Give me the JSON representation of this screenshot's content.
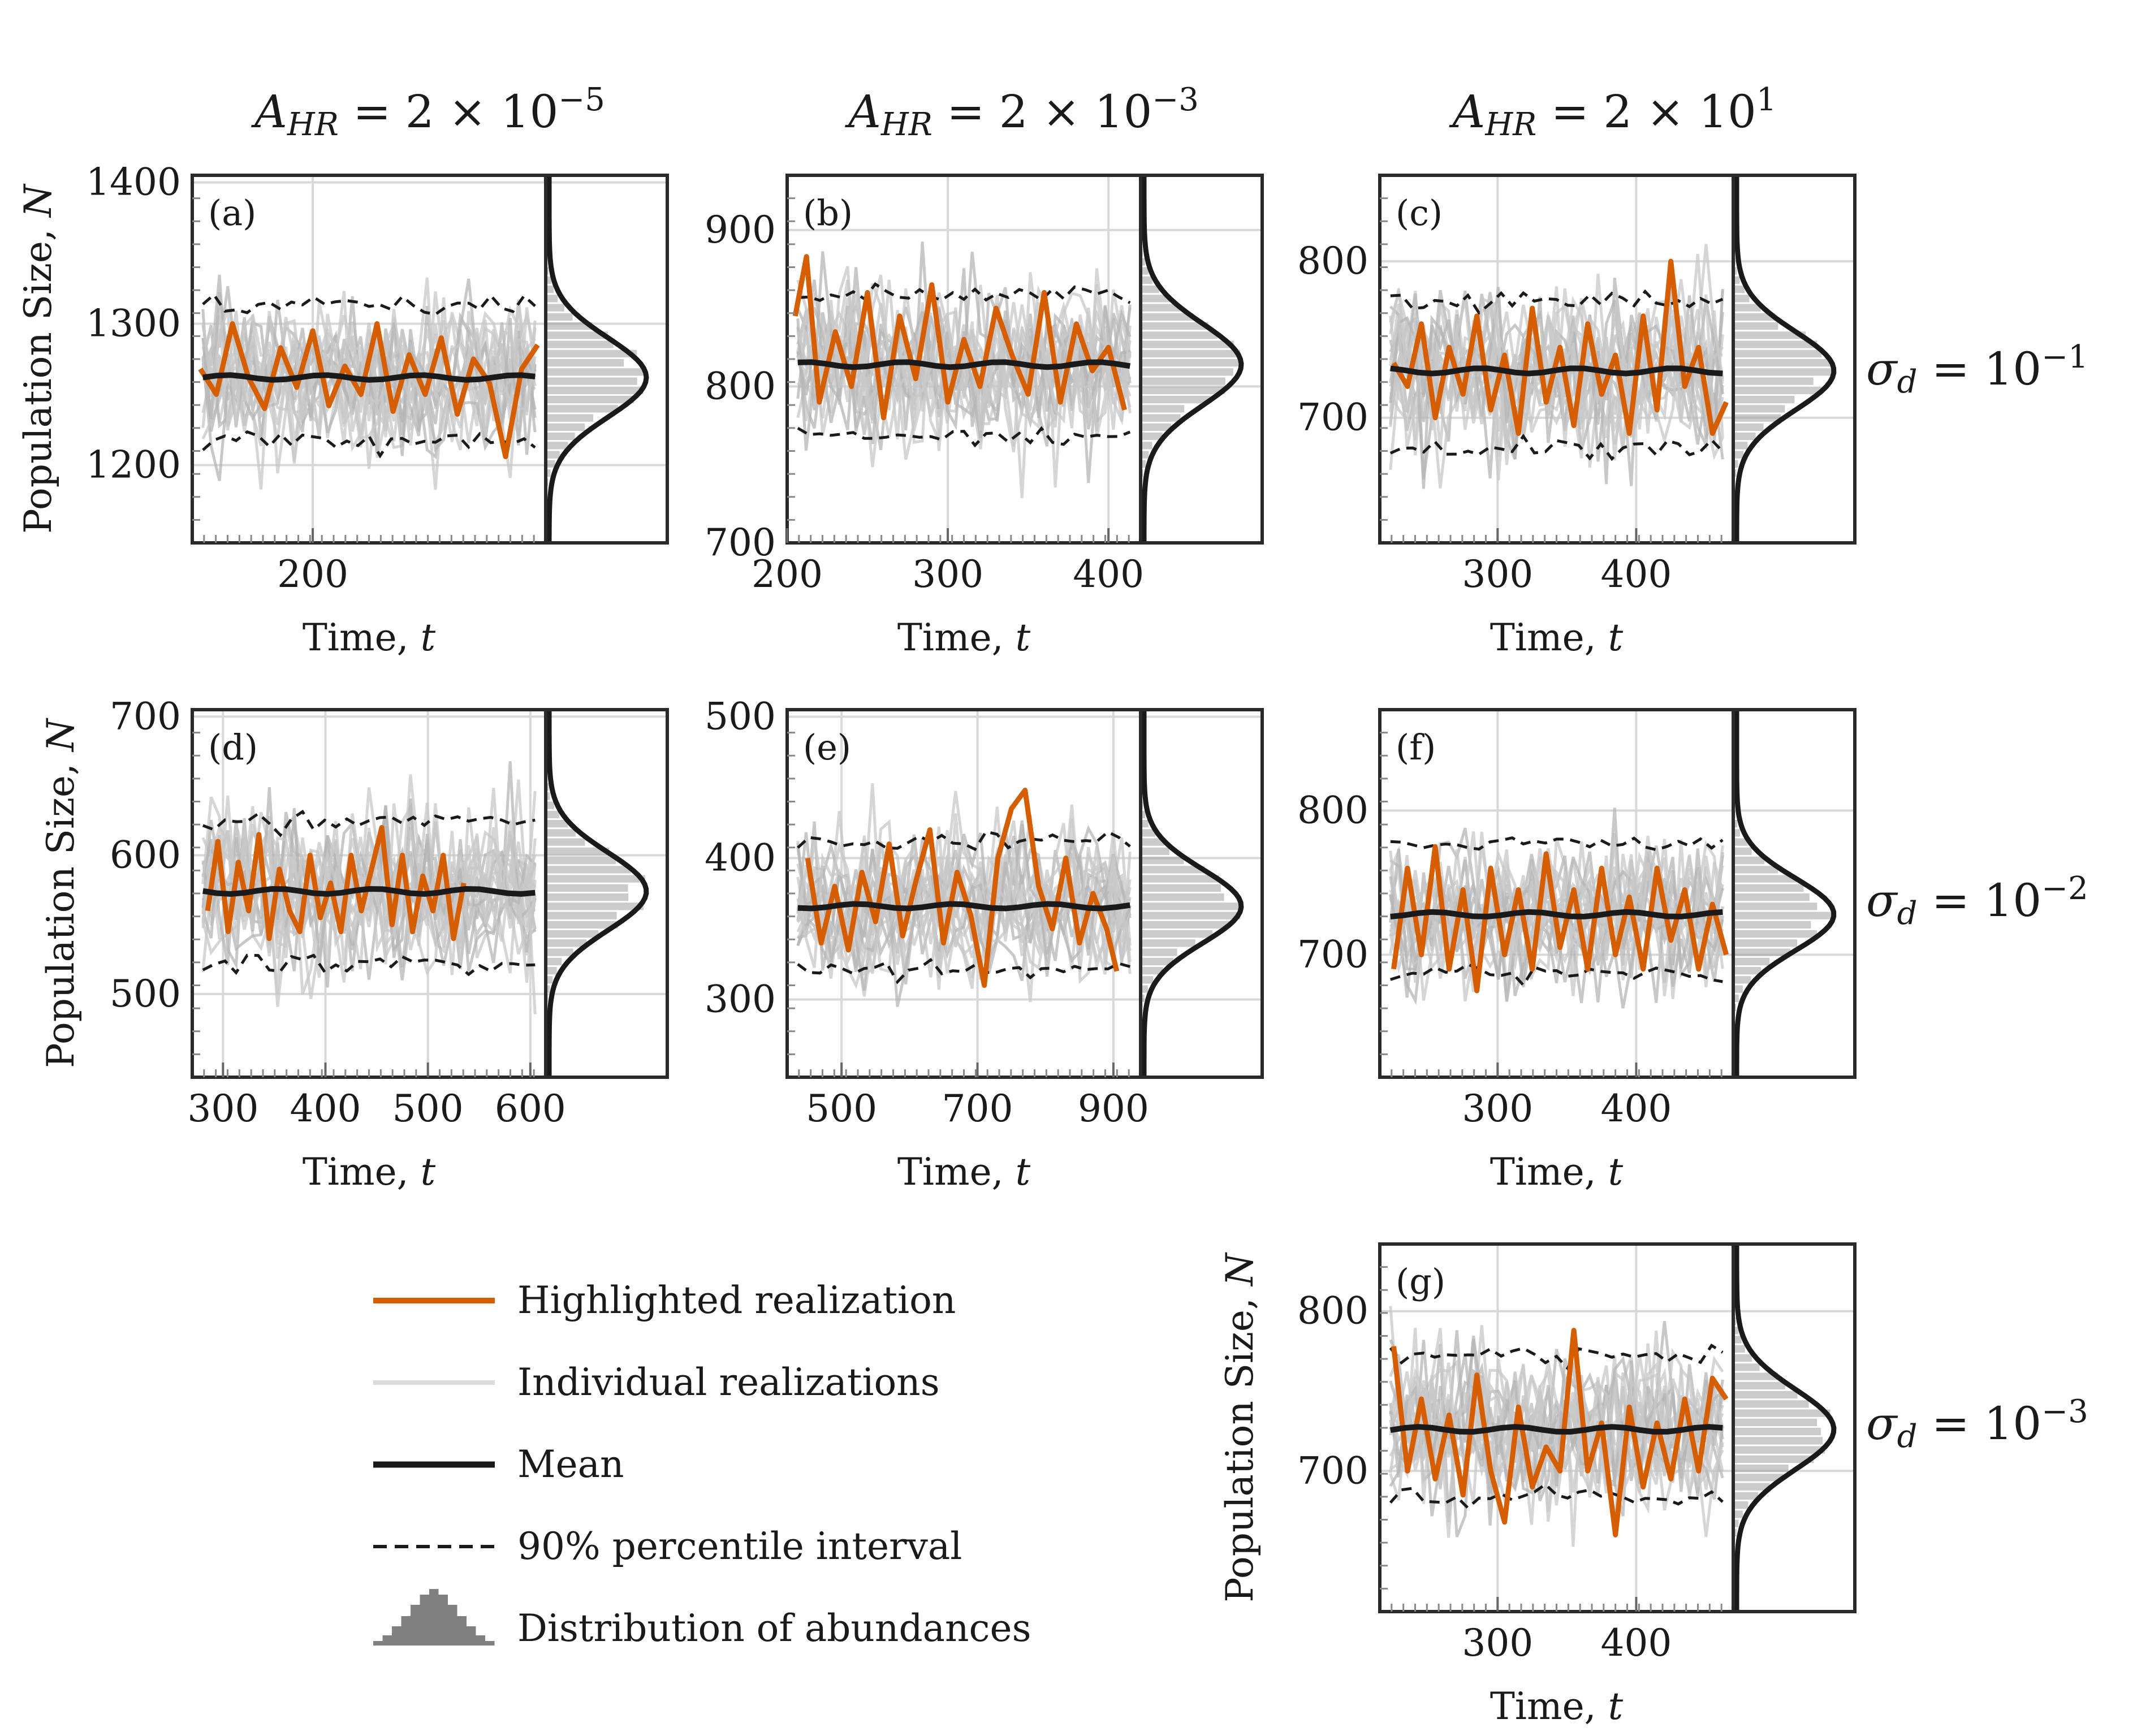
{
  "colors": {
    "highlight": "#d55e00",
    "individual": "#c8c8c8",
    "mean": "#1a1a1a",
    "interval": "#1a1a1a",
    "hist": "#a0a0a0",
    "frame": "#2a2a2a",
    "grid": "#d8d8d8"
  },
  "column_titles": [
    {
      "base": "A",
      "sub": "HR",
      "eq": " = 2 × 10",
      "exp": "−5"
    },
    {
      "base": "A",
      "sub": "HR",
      "eq": " = 2 × 10",
      "exp": "−3"
    },
    {
      "base": "A",
      "sub": "HR",
      "eq": " = 2 × 10",
      "exp": "1"
    }
  ],
  "row_titles": [
    {
      "base": "σ",
      "sub": "d",
      "eq": " = 10",
      "exp": "−1"
    },
    {
      "base": "σ",
      "sub": "d",
      "eq": " = 10",
      "exp": "−2"
    },
    {
      "base": "σ",
      "sub": "d",
      "eq": " = 10",
      "exp": "−3"
    }
  ],
  "ylabel_text": "Population Size, ",
  "ylabel_var": "N",
  "xlabel_text": "Time, ",
  "xlabel_var": "t",
  "legend": [
    {
      "label": "Highlighted realization",
      "kind": "highlight"
    },
    {
      "label": "Individual realizations",
      "kind": "individual"
    },
    {
      "label": "Mean",
      "kind": "mean"
    },
    {
      "label": "90% percentile interval",
      "kind": "interval"
    },
    {
      "label": "Distribution of abundances",
      "kind": "hist"
    }
  ],
  "chart_data": [
    {
      "type": "line",
      "panel": "(a)",
      "xlim": [
        125,
        345
      ],
      "ylim": [
        1145,
        1405
      ],
      "xticks": [
        200
      ],
      "yticks": [
        1200,
        1300,
        1400
      ],
      "mean": 1262,
      "upper": 1312,
      "lower": 1218,
      "hist_mean": 1262,
      "hist_sd": 28,
      "highlight": [
        [
          130,
          1268
        ],
        [
          140,
          1250
        ],
        [
          150,
          1300
        ],
        [
          160,
          1262
        ],
        [
          170,
          1240
        ],
        [
          180,
          1283
        ],
        [
          190,
          1255
        ],
        [
          200,
          1295
        ],
        [
          210,
          1242
        ],
        [
          220,
          1270
        ],
        [
          230,
          1250
        ],
        [
          240,
          1300
        ],
        [
          250,
          1238
        ],
        [
          260,
          1278
        ],
        [
          270,
          1250
        ],
        [
          280,
          1290
        ],
        [
          290,
          1236
        ],
        [
          300,
          1275
        ],
        [
          310,
          1258
        ],
        [
          320,
          1206
        ],
        [
          330,
          1268
        ],
        [
          340,
          1285
        ]
      ]
    },
    {
      "type": "line",
      "panel": "(b)",
      "xlim": [
        200,
        420
      ],
      "ylim": [
        700,
        935
      ],
      "xticks": [
        200,
        300,
        400
      ],
      "yticks": [
        700,
        800,
        900
      ],
      "mean": 814,
      "upper": 858,
      "lower": 768,
      "hist_mean": 814,
      "hist_sd": 26,
      "highlight": [
        [
          205,
          845
        ],
        [
          212,
          883
        ],
        [
          220,
          790
        ],
        [
          230,
          835
        ],
        [
          240,
          800
        ],
        [
          250,
          860
        ],
        [
          260,
          780
        ],
        [
          270,
          845
        ],
        [
          280,
          805
        ],
        [
          290,
          865
        ],
        [
          300,
          790
        ],
        [
          310,
          830
        ],
        [
          320,
          800
        ],
        [
          330,
          850
        ],
        [
          340,
          820
        ],
        [
          350,
          795
        ],
        [
          360,
          860
        ],
        [
          370,
          790
        ],
        [
          380,
          840
        ],
        [
          390,
          810
        ],
        [
          400,
          825
        ],
        [
          410,
          785
        ]
      ]
    },
    {
      "type": "line",
      "panel": "(c)",
      "xlim": [
        215,
        470
      ],
      "ylim": [
        620,
        855
      ],
      "xticks": [
        300,
        400
      ],
      "yticks": [
        700,
        800
      ],
      "mean": 730,
      "upper": 775,
      "lower": 680,
      "hist_mean": 730,
      "hist_sd": 25,
      "highlight": [
        [
          225,
          735
        ],
        [
          235,
          720
        ],
        [
          245,
          760
        ],
        [
          255,
          700
        ],
        [
          265,
          745
        ],
        [
          275,
          715
        ],
        [
          285,
          765
        ],
        [
          295,
          705
        ],
        [
          305,
          740
        ],
        [
          315,
          690
        ],
        [
          325,
          770
        ],
        [
          335,
          710
        ],
        [
          345,
          745
        ],
        [
          355,
          695
        ],
        [
          365,
          760
        ],
        [
          375,
          715
        ],
        [
          385,
          740
        ],
        [
          395,
          690
        ],
        [
          405,
          765
        ],
        [
          415,
          705
        ],
        [
          425,
          800
        ],
        [
          435,
          720
        ],
        [
          445,
          745
        ],
        [
          455,
          690
        ],
        [
          465,
          710
        ]
      ]
    },
    {
      "type": "line",
      "panel": "(d)",
      "xlim": [
        270,
        615
      ],
      "ylim": [
        440,
        705
      ],
      "xticks": [
        300,
        400,
        500,
        600
      ],
      "yticks": [
        500,
        600,
        700
      ],
      "mean": 574,
      "upper": 625,
      "lower": 522,
      "hist_mean": 574,
      "hist_sd": 28,
      "highlight": [
        [
          285,
          560
        ],
        [
          295,
          610
        ],
        [
          305,
          545
        ],
        [
          315,
          595
        ],
        [
          325,
          560
        ],
        [
          335,
          615
        ],
        [
          345,
          540
        ],
        [
          355,
          590
        ],
        [
          365,
          560
        ],
        [
          375,
          545
        ],
        [
          385,
          600
        ],
        [
          395,
          555
        ],
        [
          405,
          580
        ],
        [
          415,
          545
        ],
        [
          425,
          600
        ],
        [
          435,
          560
        ],
        [
          445,
          590
        ],
        [
          455,
          620
        ],
        [
          465,
          550
        ],
        [
          475,
          600
        ],
        [
          485,
          545
        ],
        [
          495,
          585
        ],
        [
          505,
          560
        ],
        [
          515,
          600
        ],
        [
          525,
          540
        ],
        [
          535,
          580
        ]
      ]
    },
    {
      "type": "line",
      "panel": "(e)",
      "xlim": [
        420,
        940
      ],
      "ylim": [
        245,
        505
      ],
      "xticks": [
        500,
        700,
        900
      ],
      "yticks": [
        300,
        400,
        500
      ],
      "mean": 366,
      "upper": 412,
      "lower": 322,
      "hist_mean": 366,
      "hist_sd": 26,
      "highlight": [
        [
          450,
          400
        ],
        [
          470,
          340
        ],
        [
          490,
          380
        ],
        [
          510,
          335
        ],
        [
          530,
          390
        ],
        [
          550,
          355
        ],
        [
          570,
          410
        ],
        [
          590,
          345
        ],
        [
          610,
          385
        ],
        [
          630,
          420
        ],
        [
          650,
          340
        ],
        [
          670,
          390
        ],
        [
          690,
          360
        ],
        [
          710,
          310
        ],
        [
          730,
          400
        ],
        [
          750,
          435
        ],
        [
          770,
          448
        ],
        [
          790,
          380
        ],
        [
          810,
          350
        ],
        [
          830,
          400
        ],
        [
          850,
          340
        ],
        [
          870,
          375
        ],
        [
          890,
          350
        ],
        [
          905,
          320
        ]
      ]
    },
    {
      "type": "line",
      "panel": "(f)",
      "xlim": [
        215,
        470
      ],
      "ylim": [
        615,
        870
      ],
      "xticks": [
        300,
        400
      ],
      "yticks": [
        700,
        800
      ],
      "mean": 728,
      "upper": 778,
      "lower": 688,
      "hist_mean": 728,
      "hist_sd": 25,
      "highlight": [
        [
          225,
          690
        ],
        [
          235,
          760
        ],
        [
          245,
          700
        ],
        [
          255,
          775
        ],
        [
          265,
          690
        ],
        [
          275,
          745
        ],
        [
          285,
          675
        ],
        [
          295,
          760
        ],
        [
          305,
          700
        ],
        [
          315,
          745
        ],
        [
          325,
          690
        ],
        [
          335,
          770
        ],
        [
          345,
          705
        ],
        [
          355,
          745
        ],
        [
          365,
          690
        ],
        [
          375,
          760
        ],
        [
          385,
          700
        ],
        [
          395,
          740
        ],
        [
          405,
          690
        ],
        [
          415,
          760
        ],
        [
          425,
          710
        ],
        [
          435,
          745
        ],
        [
          445,
          690
        ],
        [
          455,
          735
        ],
        [
          465,
          700
        ]
      ]
    },
    {
      "type": "line",
      "panel": "(g)",
      "xlim": [
        215,
        470
      ],
      "ylim": [
        612,
        842
      ],
      "xticks": [
        300,
        400
      ],
      "yticks": [
        700,
        800
      ],
      "mean": 726,
      "upper": 772,
      "lower": 684,
      "hist_mean": 726,
      "hist_sd": 25,
      "highlight": [
        [
          225,
          778
        ],
        [
          235,
          700
        ],
        [
          245,
          745
        ],
        [
          255,
          695
        ],
        [
          265,
          735
        ],
        [
          275,
          685
        ],
        [
          285,
          760
        ],
        [
          295,
          700
        ],
        [
          305,
          668
        ],
        [
          315,
          740
        ],
        [
          325,
          690
        ],
        [
          335,
          715
        ],
        [
          345,
          700
        ],
        [
          355,
          788
        ],
        [
          365,
          700
        ],
        [
          375,
          730
        ],
        [
          385,
          660
        ],
        [
          395,
          740
        ],
        [
          405,
          690
        ],
        [
          415,
          730
        ],
        [
          425,
          695
        ],
        [
          435,
          745
        ],
        [
          445,
          700
        ],
        [
          455,
          758
        ],
        [
          465,
          745
        ]
      ]
    }
  ]
}
